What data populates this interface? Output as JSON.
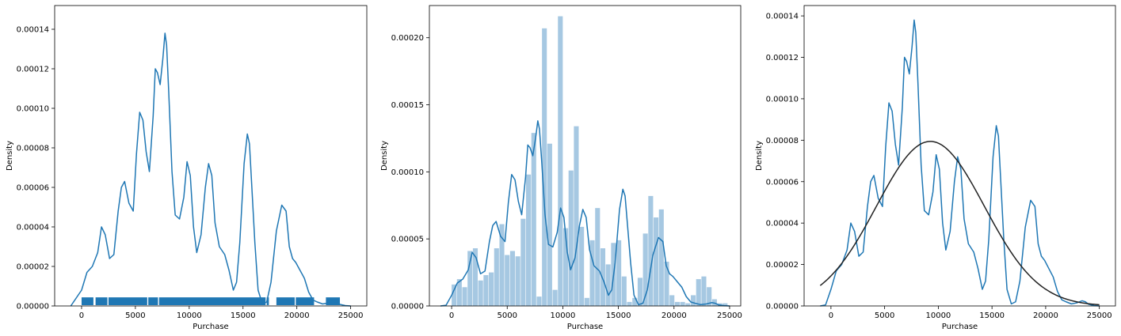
{
  "colors": {
    "kde": "#1f77b4",
    "hist": "#a6c8e2",
    "rug": "#1f77b4",
    "normal": "#222222"
  },
  "chart_data": [
    {
      "type": "area",
      "variant": "kde-with-rug",
      "xlabel": "Purchase",
      "ylabel": "Density",
      "xlim": [
        -2500,
        26500
      ],
      "ylim": [
        0,
        0.000152
      ],
      "xticks": [
        0,
        5000,
        10000,
        15000,
        20000,
        25000
      ],
      "yticks": [
        0,
        2e-05,
        4e-05,
        6e-05,
        8e-05,
        0.0001,
        0.00012,
        0.00014
      ],
      "xticklabels": [
        "0",
        "5000",
        "10000",
        "15000",
        "20000",
        "25000"
      ],
      "yticklabels": [
        "0.00000",
        "0.00002",
        "0.00004",
        "0.00006",
        "0.00008",
        "0.00010",
        "0.00012",
        "0.00014"
      ],
      "kde": {
        "x": [
          -1000,
          0,
          500,
          1000,
          1500,
          1850,
          2200,
          2600,
          3000,
          3400,
          3700,
          4000,
          4400,
          4800,
          5100,
          5400,
          5700,
          6000,
          6300,
          6650,
          6850,
          7050,
          7300,
          7550,
          7750,
          7900,
          8100,
          8400,
          8700,
          9100,
          9500,
          9800,
          10100,
          10400,
          10700,
          11100,
          11500,
          11800,
          12100,
          12400,
          12800,
          13300,
          13700,
          14100,
          14400,
          14700,
          15100,
          15400,
          15600,
          15800,
          16100,
          16400,
          16800,
          17200,
          17600,
          18100,
          18600,
          19000,
          19300,
          19600,
          19900,
          20300,
          20700,
          21100,
          21500,
          21900,
          22400,
          22900,
          23400,
          23700,
          24000,
          24500,
          25000
        ],
        "y": [
          0.0,
          8e-06,
          1.7e-05,
          2e-05,
          2.7e-05,
          4e-05,
          3.6e-05,
          2.4e-05,
          2.6e-05,
          4.8e-05,
          6e-05,
          6.3e-05,
          5.2e-05,
          4.8e-05,
          7.7e-05,
          9.8e-05,
          9.4e-05,
          7.8e-05,
          6.8e-05,
          9.6e-05,
          0.00012,
          0.000118,
          0.000112,
          0.000125,
          0.000138,
          0.000132,
          0.000108,
          6.8e-05,
          4.6e-05,
          4.4e-05,
          5.5e-05,
          7.3e-05,
          6.6e-05,
          4e-05,
          2.7e-05,
          3.6e-05,
          6e-05,
          7.2e-05,
          6.6e-05,
          4.2e-05,
          3e-05,
          2.6e-05,
          1.8e-05,
          8e-06,
          1.2e-05,
          3.2e-05,
          7.2e-05,
          8.7e-05,
          8.2e-05,
          6.2e-05,
          3.2e-05,
          8e-06,
          1e-06,
          2e-06,
          1.2e-05,
          3.8e-05,
          5.1e-05,
          4.8e-05,
          3e-05,
          2.4e-05,
          2.2e-05,
          1.8e-05,
          1.4e-05,
          7e-06,
          3e-06,
          2e-06,
          1e-06,
          1.5e-06,
          2.5e-06,
          2e-06,
          8e-07,
          2e-07,
          0.0
        ]
      },
      "rug_segments": [
        [
          0,
          1100
        ],
        [
          1300,
          2400
        ],
        [
          2500,
          6100
        ],
        [
          6200,
          7100
        ],
        [
          7200,
          17100
        ],
        [
          17200,
          17400
        ],
        [
          18100,
          19800
        ],
        [
          19900,
          21600
        ],
        [
          22700,
          24000
        ]
      ]
    },
    {
      "type": "bar",
      "variant": "histogram-with-kde",
      "xlabel": "Purchase",
      "ylabel": "Density",
      "xlim": [
        -2000,
        26000
      ],
      "ylim": [
        0,
        0.000224
      ],
      "xticks": [
        0,
        5000,
        10000,
        15000,
        20000,
        25000
      ],
      "yticks": [
        0,
        5e-05,
        0.0001,
        0.00015,
        0.0002
      ],
      "xticklabels": [
        "0",
        "5000",
        "10000",
        "15000",
        "20000",
        "25000"
      ],
      "yticklabels": [
        "0.00000",
        "0.00005",
        "0.00010",
        "0.00015",
        "0.00020"
      ],
      "histogram": {
        "bin_start": 0,
        "bin_width": 478,
        "values": [
          1.6e-05,
          2e-05,
          1.4e-05,
          4.1e-05,
          4.3e-05,
          1.9e-05,
          2.3e-05,
          2.5e-05,
          4.3e-05,
          6.1e-05,
          3.8e-05,
          4.1e-05,
          3.7e-05,
          6.5e-05,
          9.8e-05,
          0.000129,
          7e-06,
          0.000207,
          0.000121,
          1.2e-05,
          0.000216,
          5.8e-05,
          0.000101,
          0.000134,
          5.9e-05,
          6e-06,
          4.9e-05,
          7.3e-05,
          4.3e-05,
          3.1e-05,
          4.7e-05,
          4.9e-05,
          2.2e-05,
          3e-06,
          6e-06,
          2.1e-05,
          5.4e-05,
          8.2e-05,
          6.6e-05,
          7.2e-05,
          3.3e-05,
          8e-06,
          3e-06,
          3e-06,
          2e-06,
          8e-06,
          2e-05,
          2.2e-05,
          1.4e-05,
          5e-06,
          2e-06,
          2e-06
        ]
      },
      "kde": {
        "x": [
          -1000,
          -500,
          0,
          500,
          1000,
          1500,
          1850,
          2200,
          2600,
          3000,
          3400,
          3700,
          4000,
          4400,
          4800,
          5100,
          5400,
          5700,
          6000,
          6300,
          6650,
          6850,
          7050,
          7300,
          7550,
          7750,
          7900,
          8100,
          8400,
          8700,
          9100,
          9500,
          9800,
          10100,
          10400,
          10700,
          11100,
          11500,
          11800,
          12100,
          12400,
          12800,
          13300,
          13700,
          14100,
          14400,
          14700,
          15100,
          15400,
          15600,
          15800,
          16100,
          16400,
          16800,
          17200,
          17600,
          18100,
          18600,
          19000,
          19300,
          19600,
          19900,
          20300,
          20700,
          21100,
          21500,
          21900,
          22400,
          22900,
          23400,
          23700,
          24000,
          24500,
          25000
        ],
        "y": [
          0.0,
          5e-07,
          8e-06,
          1.7e-05,
          2e-05,
          2.7e-05,
          4e-05,
          3.6e-05,
          2.4e-05,
          2.6e-05,
          4.8e-05,
          6e-05,
          6.3e-05,
          5.2e-05,
          4.8e-05,
          7.7e-05,
          9.8e-05,
          9.4e-05,
          7.8e-05,
          6.8e-05,
          9.6e-05,
          0.00012,
          0.000118,
          0.000112,
          0.000125,
          0.000138,
          0.000132,
          0.000108,
          6.8e-05,
          4.6e-05,
          4.4e-05,
          5.5e-05,
          7.3e-05,
          6.6e-05,
          4e-05,
          2.7e-05,
          3.6e-05,
          6e-05,
          7.2e-05,
          6.6e-05,
          4.2e-05,
          3e-05,
          2.6e-05,
          1.8e-05,
          8e-06,
          1.2e-05,
          3.2e-05,
          7.2e-05,
          8.7e-05,
          8.2e-05,
          6.2e-05,
          3.2e-05,
          8e-06,
          1e-06,
          2e-06,
          1.2e-05,
          3.8e-05,
          5.1e-05,
          4.8e-05,
          3e-05,
          2.4e-05,
          2.2e-05,
          1.8e-05,
          1.4e-05,
          7e-06,
          3e-06,
          2e-06,
          1e-06,
          1.5e-06,
          2.5e-06,
          2e-06,
          8e-07,
          2e-07,
          0.0
        ]
      }
    },
    {
      "type": "line",
      "variant": "kde-with-normal-fit",
      "xlabel": "Purchase",
      "ylabel": "Density",
      "xlim": [
        -2500,
        26500
      ],
      "ylim": [
        0,
        0.000145
      ],
      "xticks": [
        0,
        5000,
        10000,
        15000,
        20000,
        25000
      ],
      "yticks": [
        0,
        2e-05,
        4e-05,
        6e-05,
        8e-05,
        0.0001,
        0.00012,
        0.00014
      ],
      "xticklabels": [
        "0",
        "5000",
        "10000",
        "15000",
        "20000",
        "25000"
      ],
      "yticklabels": [
        "0.00000",
        "0.00002",
        "0.00004",
        "0.00006",
        "0.00008",
        "0.00010",
        "0.00012",
        "0.00014"
      ],
      "kde": {
        "x": [
          -1000,
          -500,
          0,
          500,
          1000,
          1500,
          1850,
          2200,
          2600,
          3000,
          3400,
          3700,
          4000,
          4400,
          4800,
          5100,
          5400,
          5700,
          6000,
          6300,
          6650,
          6850,
          7050,
          7300,
          7550,
          7750,
          7900,
          8100,
          8400,
          8700,
          9100,
          9500,
          9800,
          10100,
          10400,
          10700,
          11100,
          11500,
          11800,
          12100,
          12400,
          12800,
          13300,
          13700,
          14100,
          14400,
          14700,
          15100,
          15400,
          15600,
          15800,
          16100,
          16400,
          16800,
          17200,
          17600,
          18100,
          18600,
          19000,
          19300,
          19600,
          19900,
          20300,
          20700,
          21100,
          21500,
          21900,
          22400,
          22900,
          23400,
          23700,
          24000,
          24500,
          25000
        ],
        "y": [
          0.0,
          5e-07,
          8e-06,
          1.7e-05,
          2e-05,
          2.7e-05,
          4e-05,
          3.6e-05,
          2.4e-05,
          2.6e-05,
          4.8e-05,
          6e-05,
          6.3e-05,
          5.2e-05,
          4.8e-05,
          7.7e-05,
          9.8e-05,
          9.4e-05,
          7.8e-05,
          6.8e-05,
          9.6e-05,
          0.00012,
          0.000118,
          0.000112,
          0.000125,
          0.000138,
          0.000132,
          0.000108,
          6.8e-05,
          4.6e-05,
          4.4e-05,
          5.5e-05,
          7.3e-05,
          6.6e-05,
          4e-05,
          2.7e-05,
          3.6e-05,
          6e-05,
          7.2e-05,
          6.6e-05,
          4.2e-05,
          3e-05,
          2.6e-05,
          1.8e-05,
          8e-06,
          1.2e-05,
          3.2e-05,
          7.2e-05,
          8.7e-05,
          8.2e-05,
          6.2e-05,
          3.2e-05,
          8e-06,
          1e-06,
          2e-06,
          1.2e-05,
          3.8e-05,
          5.1e-05,
          4.8e-05,
          3e-05,
          2.4e-05,
          2.2e-05,
          1.8e-05,
          1.4e-05,
          7e-06,
          3e-06,
          2e-06,
          1e-06,
          1.5e-06,
          2.5e-06,
          2e-06,
          8e-07,
          2e-07,
          0.0
        ]
      },
      "normal_fit": {
        "mean": 9263,
        "std": 5023,
        "x_range": [
          -1000,
          25000
        ]
      }
    }
  ]
}
